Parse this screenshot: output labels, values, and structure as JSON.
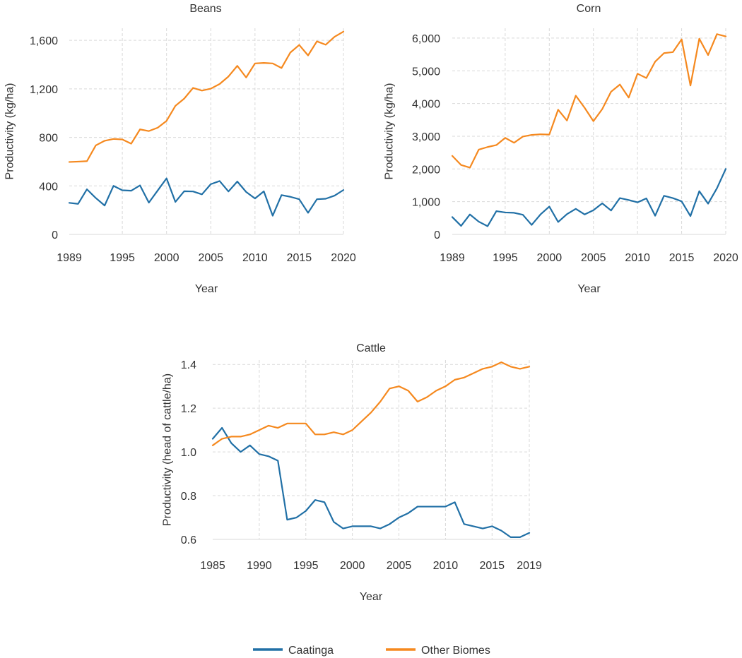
{
  "chart_data": [
    {
      "type": "line",
      "title": "Beans",
      "xlabel": "Year",
      "ylabel": "Productivity (kg/ha)",
      "xlim": [
        1989,
        2020
      ],
      "ylim": [
        0,
        1700
      ],
      "x_ticks": [
        1989,
        1995,
        2000,
        2005,
        2010,
        2015,
        2020
      ],
      "y_ticks": [
        0,
        400,
        800,
        1200,
        1600
      ],
      "y_tick_labels": [
        "0",
        "400",
        "800",
        "1,200",
        "1,600"
      ],
      "x": [
        1989,
        1990,
        1991,
        1992,
        1993,
        1994,
        1995,
        1996,
        1997,
        1998,
        1999,
        2000,
        2001,
        2002,
        2003,
        2004,
        2005,
        2006,
        2007,
        2008,
        2009,
        2010,
        2011,
        2012,
        2013,
        2014,
        2015,
        2016,
        2017,
        2018,
        2019,
        2020
      ],
      "series": [
        {
          "name": "Caatinga",
          "color": "#2170a6",
          "values": [
            260,
            252,
            372,
            300,
            238,
            400,
            364,
            360,
            404,
            262,
            362,
            462,
            268,
            356,
            354,
            330,
            414,
            440,
            354,
            436,
            350,
            296,
            355,
            154,
            324,
            310,
            290,
            178,
            290,
            294,
            320,
            366
          ]
        },
        {
          "name": "Other Biomes",
          "color": "#f5891f",
          "values": [
            597,
            600,
            604,
            734,
            772,
            787,
            783,
            748,
            866,
            852,
            880,
            936,
            1060,
            1120,
            1208,
            1186,
            1202,
            1240,
            1302,
            1390,
            1294,
            1410,
            1414,
            1410,
            1372,
            1500,
            1562,
            1476,
            1592,
            1564,
            1630,
            1672
          ]
        }
      ]
    },
    {
      "type": "line",
      "title": "Corn",
      "xlabel": "Year",
      "ylabel": "Productivity (kg/ha)",
      "xlim": [
        1989,
        2020
      ],
      "ylim": [
        0,
        6300
      ],
      "x_ticks": [
        1989,
        1995,
        2000,
        2005,
        2010,
        2015,
        2020
      ],
      "y_ticks": [
        0,
        1000,
        2000,
        3000,
        4000,
        5000,
        6000
      ],
      "y_tick_labels": [
        "0",
        "1,000",
        "2,000",
        "3,000",
        "4,000",
        "5,000",
        "6,000"
      ],
      "x": [
        1989,
        1990,
        1991,
        1992,
        1993,
        1994,
        1995,
        1996,
        1997,
        1998,
        1999,
        2000,
        2001,
        2002,
        2003,
        2004,
        2005,
        2006,
        2007,
        2008,
        2009,
        2010,
        2011,
        2012,
        2013,
        2014,
        2015,
        2016,
        2017,
        2018,
        2019,
        2020
      ],
      "series": [
        {
          "name": "Caatinga",
          "color": "#2170a6",
          "values": [
            530,
            260,
            610,
            390,
            250,
            710,
            670,
            660,
            600,
            290,
            610,
            850,
            380,
            620,
            780,
            610,
            740,
            950,
            730,
            1110,
            1050,
            980,
            1100,
            570,
            1180,
            1110,
            1010,
            560,
            1320,
            940,
            1410,
            2000
          ]
        },
        {
          "name": "Other Biomes",
          "color": "#f5891f",
          "values": [
            2400,
            2120,
            2040,
            2590,
            2670,
            2730,
            2950,
            2800,
            2990,
            3040,
            3060,
            3050,
            3810,
            3480,
            4240,
            3870,
            3460,
            3830,
            4360,
            4580,
            4180,
            4910,
            4780,
            5280,
            5540,
            5570,
            5960,
            4550,
            5980,
            5480,
            6120,
            6050
          ]
        }
      ]
    },
    {
      "type": "line",
      "title": "Cattle",
      "xlabel": "Year",
      "ylabel": "Productivity (head of cattle/ha)",
      "xlim": [
        1985,
        2019
      ],
      "ylim": [
        0.6,
        1.42
      ],
      "x_ticks": [
        1985,
        1990,
        1995,
        2000,
        2005,
        2010,
        2015,
        2019
      ],
      "y_ticks": [
        0.6,
        0.8,
        1.0,
        1.2,
        1.4
      ],
      "y_tick_labels": [
        "0.6",
        "0.8",
        "1.0",
        "1.2",
        "1.4"
      ],
      "x": [
        1985,
        1986,
        1987,
        1988,
        1989,
        1990,
        1991,
        1992,
        1993,
        1994,
        1995,
        1996,
        1997,
        1998,
        1999,
        2000,
        2001,
        2002,
        2003,
        2004,
        2005,
        2006,
        2007,
        2008,
        2009,
        2010,
        2011,
        2012,
        2013,
        2014,
        2015,
        2016,
        2017,
        2018,
        2019
      ],
      "series": [
        {
          "name": "Caatinga",
          "color": "#2170a6",
          "values": [
            1.06,
            1.11,
            1.04,
            1.0,
            1.03,
            0.99,
            0.98,
            0.96,
            0.69,
            0.7,
            0.73,
            0.78,
            0.77,
            0.68,
            0.65,
            0.66,
            0.66,
            0.66,
            0.65,
            0.67,
            0.7,
            0.72,
            0.75,
            0.75,
            0.75,
            0.75,
            0.77,
            0.67,
            0.66,
            0.65,
            0.66,
            0.64,
            0.61,
            0.61,
            0.63
          ]
        },
        {
          "name": "Other Biomes",
          "color": "#f5891f",
          "values": [
            1.03,
            1.06,
            1.07,
            1.07,
            1.08,
            1.1,
            1.12,
            1.11,
            1.13,
            1.13,
            1.13,
            1.08,
            1.08,
            1.09,
            1.08,
            1.1,
            1.14,
            1.18,
            1.23,
            1.29,
            1.3,
            1.28,
            1.23,
            1.25,
            1.28,
            1.3,
            1.33,
            1.34,
            1.36,
            1.38,
            1.39,
            1.41,
            1.39,
            1.38,
            1.39
          ]
        }
      ]
    }
  ],
  "legend": {
    "placement": "bottom-center",
    "items": [
      {
        "label": "Caatinga",
        "color": "#2170a6"
      },
      {
        "label": "Other Biomes",
        "color": "#f5891f"
      }
    ]
  },
  "style": {
    "grid_color": "#d9d9d9",
    "axis_color": "#333333"
  }
}
